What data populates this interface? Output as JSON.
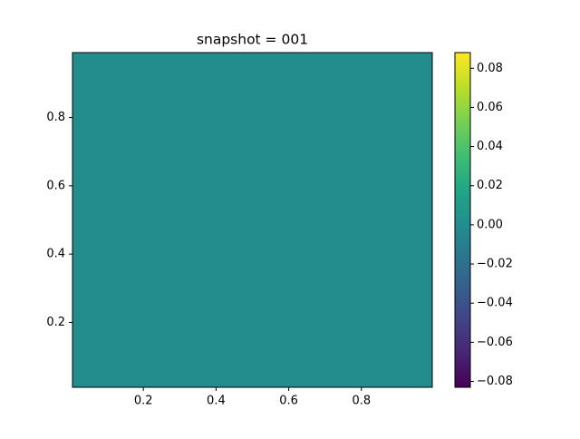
{
  "chart_data": {
    "type": "heatmap",
    "title": "snapshot = 001",
    "z": [
      [
        0
      ]
    ],
    "xlim": [
      0.005,
      0.995
    ],
    "ylim": [
      0.01,
      0.99
    ],
    "xticks": [
      0.2,
      0.4,
      0.6,
      0.8
    ],
    "yticks": [
      0.2,
      0.4,
      0.6,
      0.8
    ],
    "colormap": "viridis",
    "clim": [
      -0.083,
      0.088
    ],
    "cticks": [
      {
        "value": -0.08,
        "label": "−0.08"
      },
      {
        "value": -0.06,
        "label": "−0.06"
      },
      {
        "value": -0.04,
        "label": "−0.04"
      },
      {
        "value": -0.02,
        "label": "−0.02"
      },
      {
        "value": 0,
        "label": "0.00"
      },
      0.02,
      0.04,
      0.06,
      0.08
    ]
  }
}
